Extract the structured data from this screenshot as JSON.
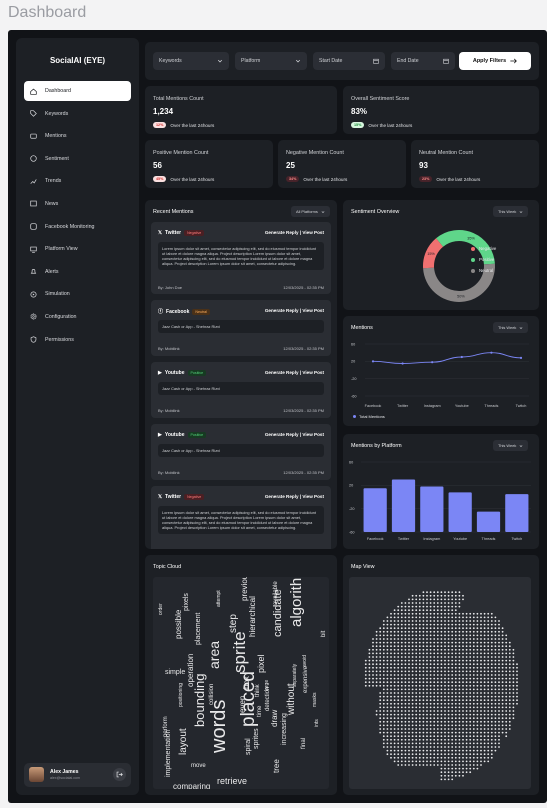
{
  "page_title": "Dashboard",
  "sidebar": {
    "brand": "SocialAI (EYE)",
    "items": [
      {
        "label": "Dashboard",
        "icon": "home-icon"
      },
      {
        "label": "Keywords",
        "icon": "tag-icon"
      },
      {
        "label": "Mentions",
        "icon": "chat-icon"
      },
      {
        "label": "Sentiment",
        "icon": "smile-icon"
      },
      {
        "label": "Trends",
        "icon": "trend-icon"
      },
      {
        "label": "News",
        "icon": "news-icon"
      },
      {
        "label": "Facebook Monitoring",
        "icon": "facebook-icon"
      },
      {
        "label": "Platform View",
        "icon": "platform-icon"
      },
      {
        "label": "Alerts",
        "icon": "bell-icon"
      },
      {
        "label": "Simulation",
        "icon": "simulation-icon"
      },
      {
        "label": "Configuration",
        "icon": "gear-icon"
      },
      {
        "label": "Permissions",
        "icon": "shield-icon"
      }
    ],
    "user": {
      "name": "Alex James",
      "email": "alex@socialai.com"
    }
  },
  "filters": {
    "keywords": "Keywords",
    "platform": "Platform",
    "start_date": "Start Date",
    "end_date": "End Date",
    "apply": "Apply Filters"
  },
  "stats": {
    "total": {
      "label": "Total Mentions Count",
      "value": "1,234",
      "badge": "12%",
      "foot": "Over the last 24hours"
    },
    "sentiment": {
      "label": "Overall Sentiment Score",
      "value": "83%",
      "badge": "15%",
      "foot": "Over the last 24hours"
    },
    "positive": {
      "label": "Positive Mention Count",
      "value": "56",
      "badge": "45%",
      "foot": "Over the last 24hours"
    },
    "negative": {
      "label": "Negative Mention Count",
      "value": "25",
      "badge": "34%",
      "foot": "Over the last 24hours"
    },
    "neutral": {
      "label": "Neutral Mention Count",
      "value": "93",
      "badge": "23%",
      "foot": "Over the last 24hours"
    }
  },
  "recent": {
    "title": "Recent Mentions",
    "filter": "All Platforms",
    "items": [
      {
        "platform": "Twitter",
        "tag": "Negative",
        "actions": "Generate Reply | View Post",
        "text": "Lorem ipsum dolor sit amet, consectetur adipiscing elit, sed do eiusmod tempor incididunt ut labore et dolore magna aliqua. Project description Lorem ipsum dolor sit amet, consectetur adipiscing elit, sed do eiusmod tempor incididunt ut labore et dolore magna aliqua. Project description Lorem ipsum dolor sit amet, consectetur adipiscing.",
        "by": "By: John Doe",
        "date": "12/03/2025 - 02:35 PM"
      },
      {
        "platform": "Facebook",
        "tag": "Neutral",
        "actions": "Generate Reply | View Post",
        "text": "Jazz Cash or App - Shehraz Rizvi",
        "by": "By: Mobilink",
        "date": "12/03/2025 - 02:35 PM"
      },
      {
        "platform": "Youtube",
        "tag": "Positive",
        "actions": "Generate Reply | View Post",
        "text": "Jazz Cash or App - Shehraz Rizvi",
        "by": "By: Mobilink",
        "date": "12/03/2025 - 02:35 PM"
      },
      {
        "platform": "Youtube",
        "tag": "Positive",
        "actions": "Generate Reply | View Post",
        "text": "Jazz Cash or App - Shehraz Rizvi",
        "by": "By: Mobilink",
        "date": "12/03/2025 - 02:35 PM"
      },
      {
        "platform": "Twitter",
        "tag": "Negative",
        "actions": "Generate Reply | View Post",
        "text": "Lorem ipsum dolor sit amet, consectetur adipiscing elit, sed do eiusmod tempor incididunt ut labore et dolore magna aliqua. Project description Lorem ipsum dolor sit amet, consectetur adipiscing elit, sed do eiusmod tempor incididunt ut labore et dolore magna aliqua. Project description Lorem ipsum dolor sit amet, consectetur adipiscing."
      }
    ]
  },
  "sentiment_overview": {
    "title": "Sentiment Overview",
    "filter": "This Week",
    "legend": [
      "Negative",
      "Positive",
      "Neutral"
    ]
  },
  "mentions_chart": {
    "title": "Mentions",
    "filter": "This Week",
    "legend": "Total Mentions"
  },
  "platform_chart": {
    "title": "Mentions by Platform",
    "filter": "This Week"
  },
  "topic_cloud": {
    "title": "Topic Cloud",
    "words": [
      "words",
      "placed",
      "sprite",
      "algorithm",
      "bounding",
      "area",
      "layout",
      "retrieve",
      "candidate",
      "step",
      "pixel",
      "hierarchical",
      "previously",
      "possible",
      "pixels",
      "simple",
      "operation",
      "perform",
      "collision",
      "implementation",
      "comparing",
      "increasing",
      "expensive",
      "detection",
      "tree",
      "spiral",
      "move",
      "final",
      "draw",
      "without",
      "box",
      "think",
      "even",
      "large",
      "time",
      "sprites",
      "separately",
      "placement",
      "avoid",
      "available",
      "attempt",
      "positioning",
      "ints",
      "masks",
      "bit",
      "order"
    ]
  },
  "map": {
    "title": "Map View"
  },
  "chart_data": [
    {
      "type": "pie",
      "categories": [
        "Negative",
        "Positive",
        "Neutral"
      ],
      "values": [
        15,
        35,
        50
      ],
      "labels": [
        "15%",
        "35%",
        "50%"
      ],
      "colors": [
        "#f07070",
        "#5fd68a",
        "#8a8787"
      ]
    },
    {
      "type": "line",
      "categories": [
        "Facebook",
        "Twitter",
        "Instagram",
        "Youtube",
        "Threads",
        "Twitch"
      ],
      "series": [
        {
          "name": "Total Mentions",
          "values": [
            20,
            15,
            18,
            30,
            40,
            28
          ]
        }
      ],
      "ylim": [
        -60,
        60
      ],
      "yticks": [
        -60,
        -20,
        20,
        60
      ],
      "color": "#7b86f5"
    },
    {
      "type": "bar",
      "categories": [
        "Facebook",
        "Twitter",
        "Instagram",
        "Youtube",
        "Threads",
        "Twitch"
      ],
      "values": [
        15,
        30,
        18,
        8,
        -25,
        5
      ],
      "ylim": [
        -60,
        60
      ],
      "yticks": [
        -60,
        -20,
        20,
        60
      ],
      "color": "#7b86f5"
    }
  ]
}
